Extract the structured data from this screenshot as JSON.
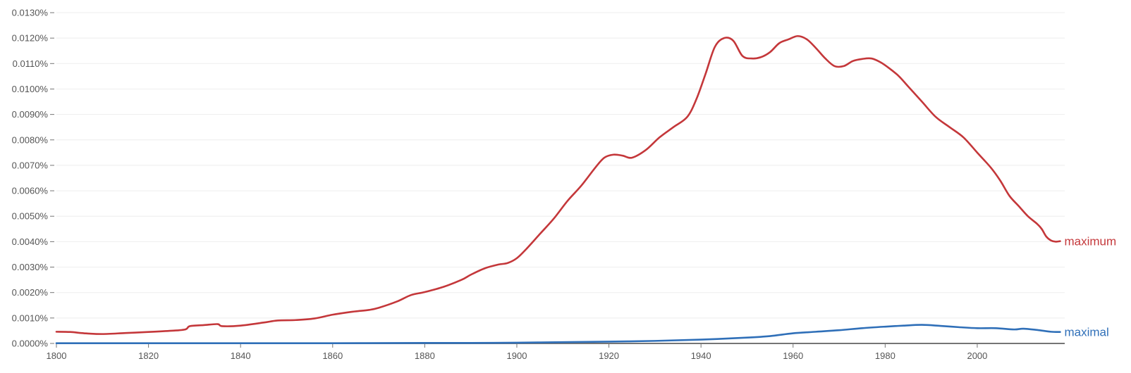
{
  "chart_data": {
    "type": "line",
    "title": "",
    "xlabel": "",
    "ylabel": "",
    "xlim": [
      1800,
      2019
    ],
    "ylim": [
      0,
      0.013
    ],
    "grid": true,
    "x_ticks": [
      1800,
      1820,
      1840,
      1860,
      1880,
      1900,
      1920,
      1940,
      1960,
      1980,
      2000
    ],
    "x_tick_labels": [
      "1800",
      "1820",
      "1840",
      "1860",
      "1880",
      "1900",
      "1920",
      "1940",
      "1960",
      "1980",
      "2000"
    ],
    "y_ticks": [
      0,
      0.001,
      0.002,
      0.003,
      0.004,
      0.005,
      0.006,
      0.007,
      0.008,
      0.009,
      0.01,
      0.011,
      0.012,
      0.013
    ],
    "y_tick_labels": [
      "0.0000%",
      "0.0010%",
      "0.0020%",
      "0.0030%",
      "0.0040%",
      "0.0050%",
      "0.0060%",
      "0.0070%",
      "0.0080%",
      "0.0090%",
      "0.0100%",
      "0.0110%",
      "0.0120%",
      "0.0130%"
    ],
    "series": [
      {
        "name": "maximum",
        "color": "#c4373a",
        "points": [
          [
            1800,
            0.00046
          ],
          [
            1803,
            0.00045
          ],
          [
            1806,
            0.0004
          ],
          [
            1810,
            0.00037
          ],
          [
            1815,
            0.00041
          ],
          [
            1820,
            0.00045
          ],
          [
            1825,
            0.0005
          ],
          [
            1828,
            0.00055
          ],
          [
            1829,
            0.00068
          ],
          [
            1832,
            0.00072
          ],
          [
            1835,
            0.00076
          ],
          [
            1836,
            0.00068
          ],
          [
            1840,
            0.0007
          ],
          [
            1845,
            0.00082
          ],
          [
            1848,
            0.0009
          ],
          [
            1852,
            0.00092
          ],
          [
            1856,
            0.00098
          ],
          [
            1860,
            0.00113
          ],
          [
            1864,
            0.00124
          ],
          [
            1868,
            0.00132
          ],
          [
            1870,
            0.0014
          ],
          [
            1874,
            0.00165
          ],
          [
            1877,
            0.0019
          ],
          [
            1880,
            0.00202
          ],
          [
            1884,
            0.00222
          ],
          [
            1888,
            0.0025
          ],
          [
            1890,
            0.0027
          ],
          [
            1893,
            0.00295
          ],
          [
            1896,
            0.0031
          ],
          [
            1898,
            0.00316
          ],
          [
            1900,
            0.00335
          ],
          [
            1902,
            0.0037
          ],
          [
            1905,
            0.0043
          ],
          [
            1908,
            0.0049
          ],
          [
            1911,
            0.0056
          ],
          [
            1914,
            0.0062
          ],
          [
            1917,
            0.0069
          ],
          [
            1919,
            0.0073
          ],
          [
            1921,
            0.00742
          ],
          [
            1923,
            0.00738
          ],
          [
            1925,
            0.0073
          ],
          [
            1928,
            0.0076
          ],
          [
            1931,
            0.0081
          ],
          [
            1934,
            0.0085
          ],
          [
            1937,
            0.0089
          ],
          [
            1939,
            0.0096
          ],
          [
            1941,
            0.0106
          ],
          [
            1943,
            0.01165
          ],
          [
            1945,
            0.012
          ],
          [
            1947,
            0.0119
          ],
          [
            1949,
            0.0113
          ],
          [
            1951,
            0.0112
          ],
          [
            1953,
            0.01125
          ],
          [
            1955,
            0.01145
          ],
          [
            1957,
            0.0118
          ],
          [
            1959,
            0.01195
          ],
          [
            1961,
            0.01208
          ],
          [
            1963,
            0.01195
          ],
          [
            1965,
            0.0116
          ],
          [
            1967,
            0.0112
          ],
          [
            1969,
            0.0109
          ],
          [
            1971,
            0.0109
          ],
          [
            1973,
            0.0111
          ],
          [
            1975,
            0.01118
          ],
          [
            1977,
            0.0112
          ],
          [
            1979,
            0.01105
          ],
          [
            1981,
            0.0108
          ],
          [
            1983,
            0.0105
          ],
          [
            1985,
            0.0101
          ],
          [
            1988,
            0.0095
          ],
          [
            1991,
            0.0089
          ],
          [
            1994,
            0.0085
          ],
          [
            1997,
            0.0081
          ],
          [
            2000,
            0.0075
          ],
          [
            2003,
            0.0069
          ],
          [
            2005,
            0.0064
          ],
          [
            2007,
            0.0058
          ],
          [
            2009,
            0.0054
          ],
          [
            2011,
            0.005
          ],
          [
            2013,
            0.0047
          ],
          [
            2014,
            0.0045
          ],
          [
            2015,
            0.0042
          ],
          [
            2016,
            0.00405
          ],
          [
            2017,
            0.004
          ],
          [
            2018,
            0.00402
          ]
        ]
      },
      {
        "name": "maximal",
        "color": "#2f6fb8",
        "points": [
          [
            1800,
            1e-05
          ],
          [
            1820,
            1e-05
          ],
          [
            1840,
            1e-05
          ],
          [
            1860,
            1e-05
          ],
          [
            1880,
            2e-05
          ],
          [
            1890,
            2e-05
          ],
          [
            1900,
            3e-05
          ],
          [
            1910,
            5e-05
          ],
          [
            1920,
            7e-05
          ],
          [
            1930,
            0.0001
          ],
          [
            1940,
            0.00015
          ],
          [
            1950,
            0.00023
          ],
          [
            1955,
            0.00029
          ],
          [
            1960,
            0.0004
          ],
          [
            1965,
            0.00046
          ],
          [
            1970,
            0.00052
          ],
          [
            1975,
            0.0006
          ],
          [
            1980,
            0.00066
          ],
          [
            1984,
            0.0007
          ],
          [
            1988,
            0.00073
          ],
          [
            1992,
            0.00069
          ],
          [
            1996,
            0.00064
          ],
          [
            2000,
            0.0006
          ],
          [
            2004,
            0.0006
          ],
          [
            2008,
            0.00055
          ],
          [
            2010,
            0.00058
          ],
          [
            2013,
            0.00053
          ],
          [
            2016,
            0.00046
          ],
          [
            2018,
            0.00045
          ]
        ]
      }
    ]
  }
}
